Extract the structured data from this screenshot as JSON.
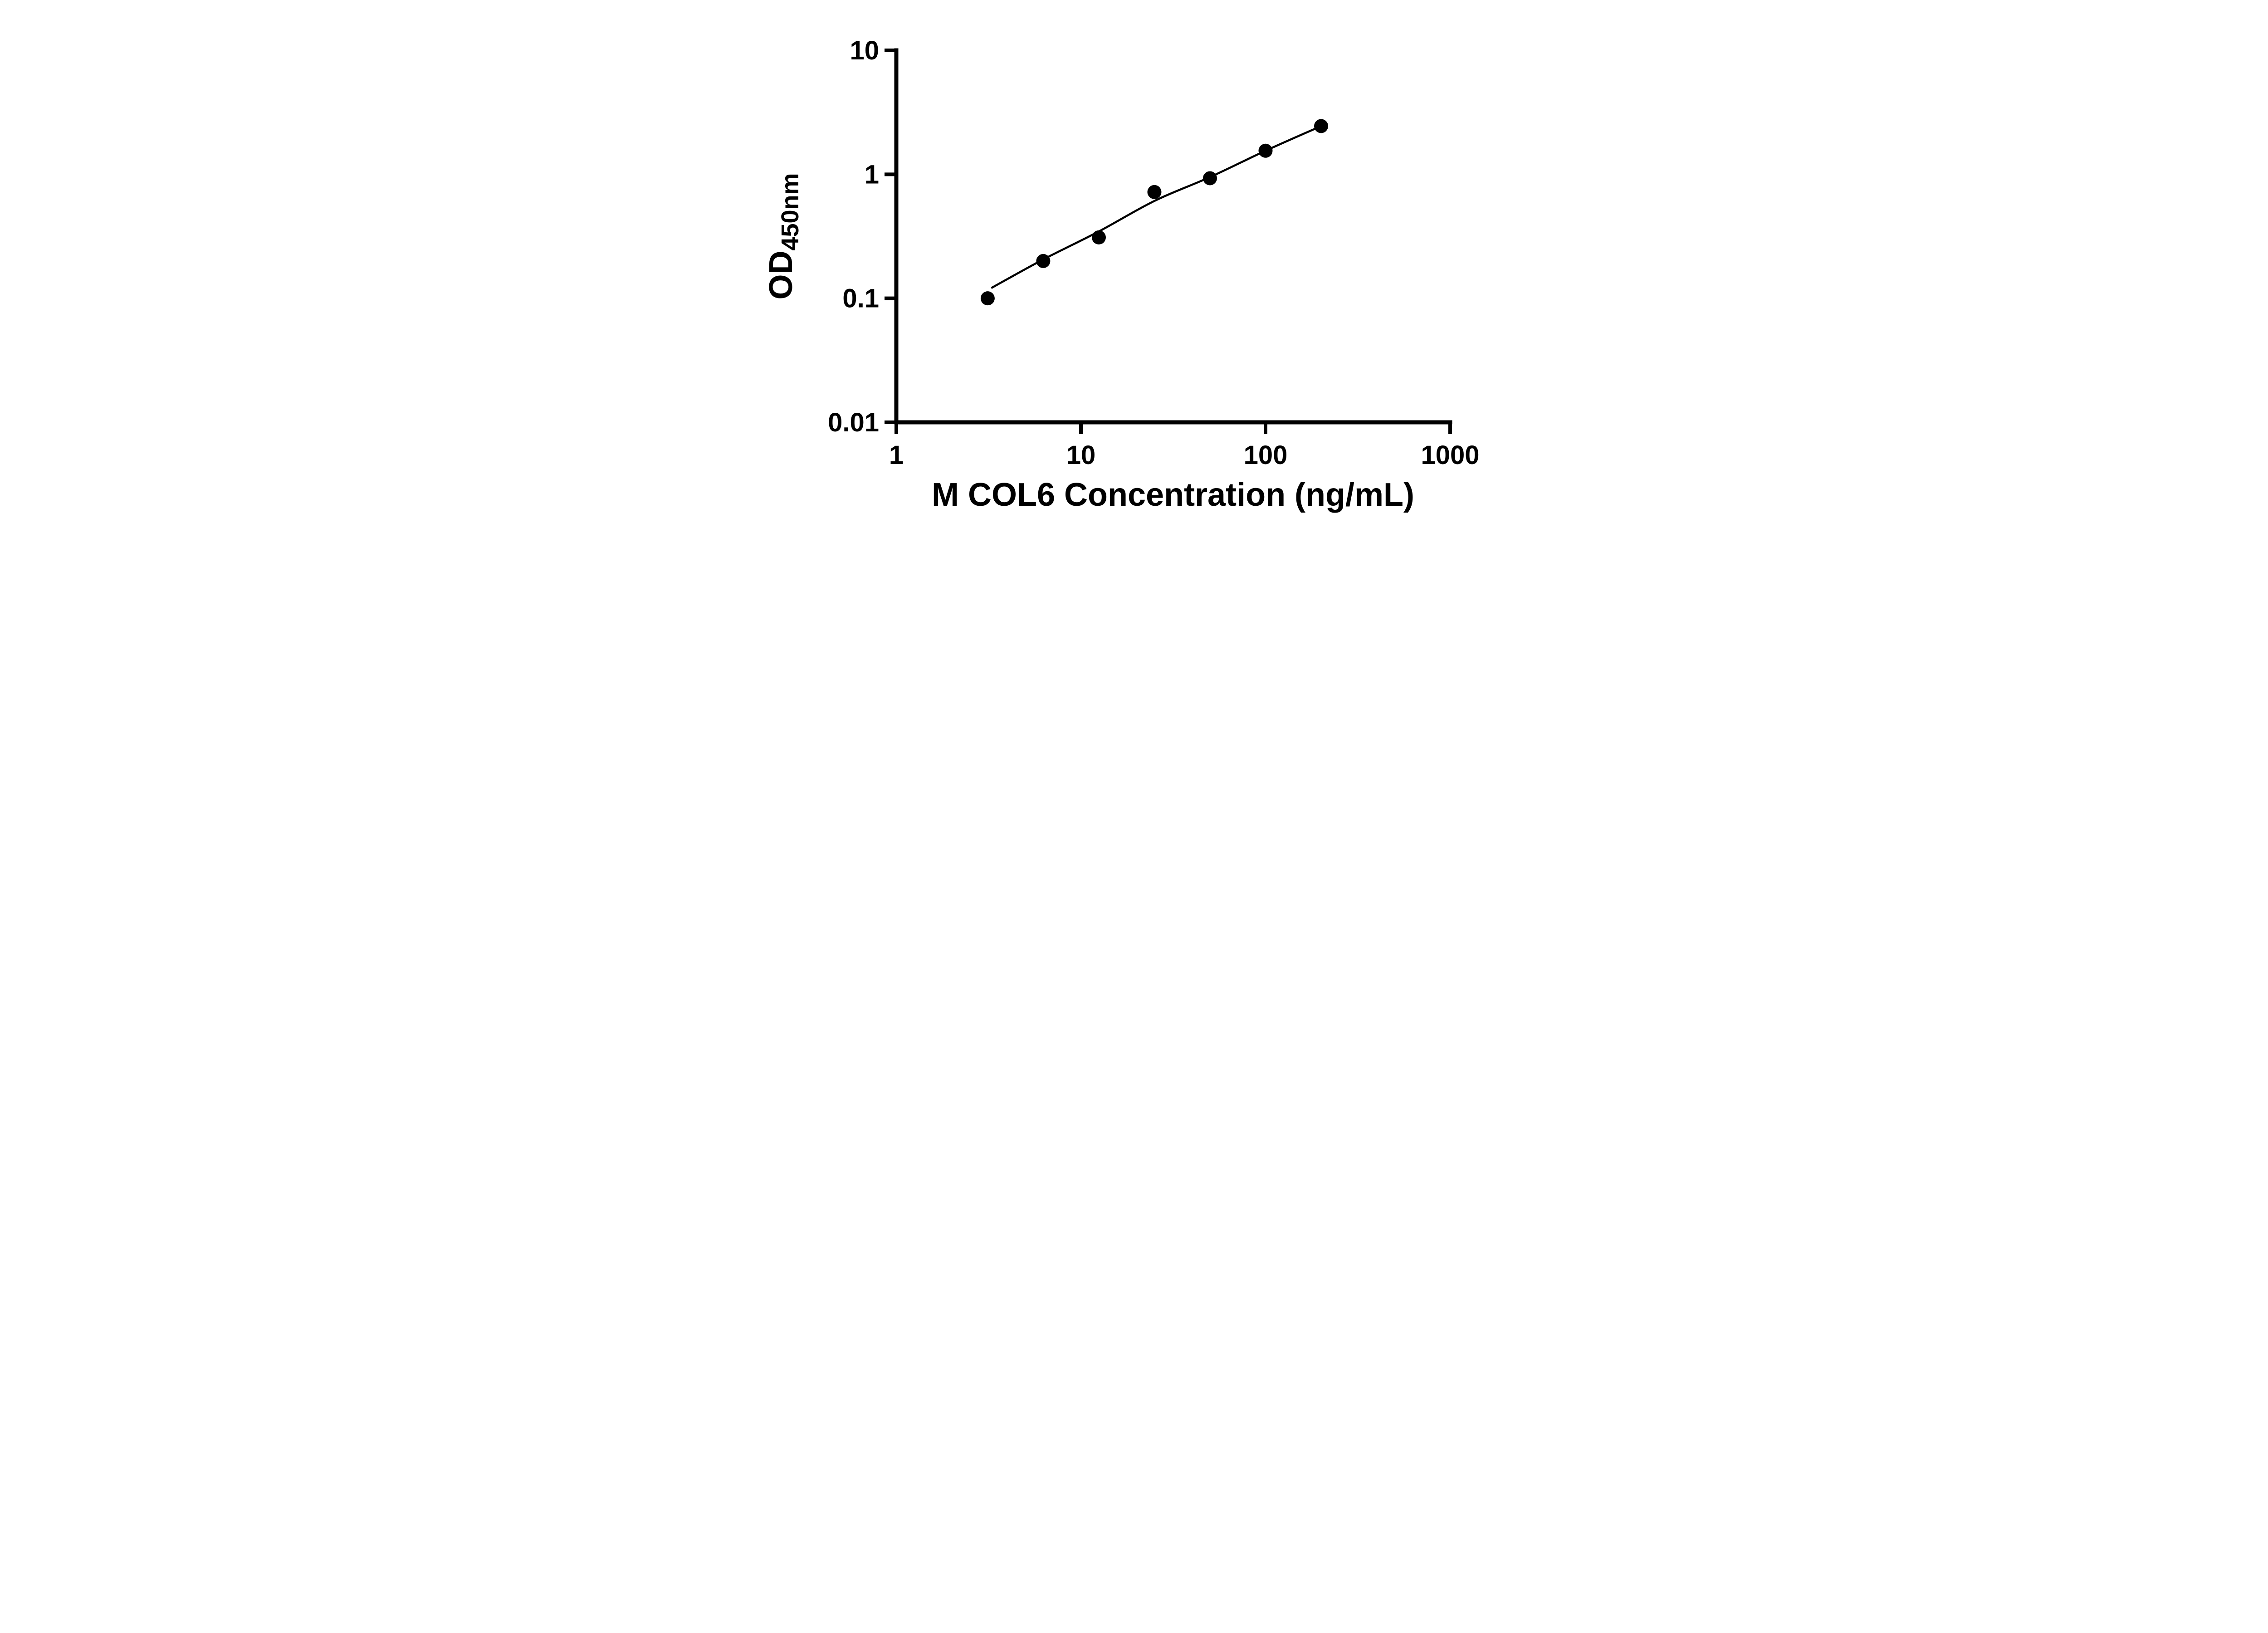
{
  "chart_data": {
    "type": "scatter",
    "title": "",
    "xlabel": "M COL6 Concentration (ng/mL)",
    "ylabel_main": "OD",
    "ylabel_sub": "450nm",
    "x_scale": "log",
    "y_scale": "log",
    "xlim": [
      1,
      1000
    ],
    "ylim": [
      0.01,
      10
    ],
    "grid": false,
    "legend": false,
    "marker_color": "#000000",
    "line_color": "#000000",
    "x_ticks": [
      {
        "value": 1,
        "label": "1"
      },
      {
        "value": 10,
        "label": "10"
      },
      {
        "value": 100,
        "label": "100"
      },
      {
        "value": 1000,
        "label": "1000"
      }
    ],
    "y_ticks": [
      {
        "value": 0.01,
        "label": "0.01"
      },
      {
        "value": 0.1,
        "label": "0.1"
      },
      {
        "value": 1,
        "label": "1"
      },
      {
        "value": 10,
        "label": "10"
      }
    ],
    "points": [
      {
        "x": 3.125,
        "y": 0.1
      },
      {
        "x": 6.25,
        "y": 0.2
      },
      {
        "x": 12.5,
        "y": 0.31
      },
      {
        "x": 25,
        "y": 0.72
      },
      {
        "x": 50,
        "y": 0.93
      },
      {
        "x": 100,
        "y": 1.55
      },
      {
        "x": 200,
        "y": 2.45
      }
    ],
    "fit_line": [
      {
        "x": 3.3,
        "y": 0.122
      },
      {
        "x": 6.25,
        "y": 0.206
      },
      {
        "x": 12.5,
        "y": 0.346
      },
      {
        "x": 25,
        "y": 0.61
      },
      {
        "x": 50,
        "y": 0.95
      },
      {
        "x": 100,
        "y": 1.55
      },
      {
        "x": 200,
        "y": 2.45
      }
    ]
  }
}
